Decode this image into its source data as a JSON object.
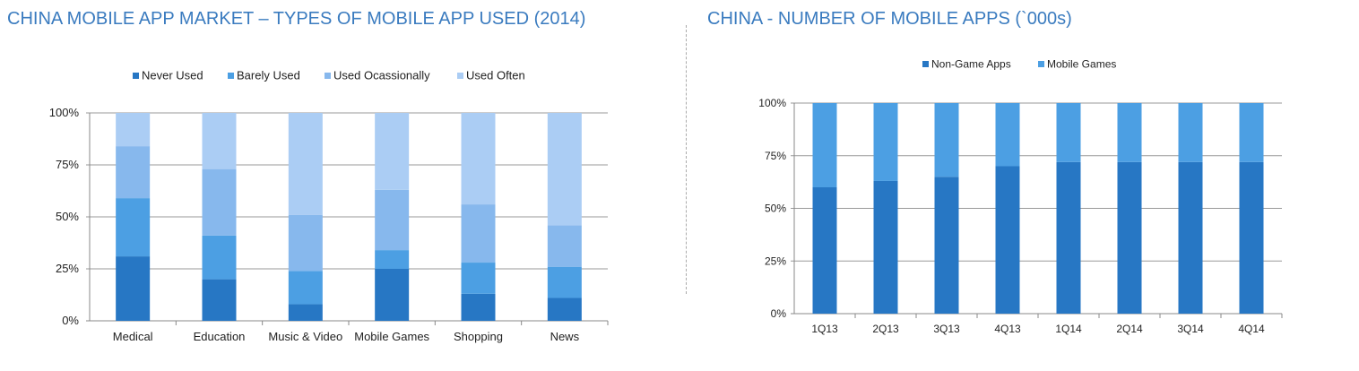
{
  "colors": {
    "title": "#3a7bbf",
    "never_used": "#2777c4",
    "barely_used": "#4c9fe3",
    "used_occasionally": "#87b8ed",
    "used_often": "#abcdf4",
    "non_game_apps": "#2777c4",
    "mobile_games": "#4c9fe3",
    "axis": "#888888",
    "grid": "#999999"
  },
  "chart_data": [
    {
      "type": "bar",
      "stacked": true,
      "title": "CHINA MOBILE APP MARKET – TYPES OF MOBILE APP USED (2014)",
      "xlabel": "",
      "ylabel": "",
      "ylim": [
        0,
        100
      ],
      "y_ticks": [
        "0%",
        "25%",
        "50%",
        "75%",
        "100%"
      ],
      "grid": true,
      "legend_position": "top",
      "categories": [
        "Medical",
        "Education",
        "Music & Video",
        "Mobile Games",
        "Shopping",
        "News"
      ],
      "series": [
        {
          "name": "Never Used",
          "values": [
            31,
            20,
            8,
            25,
            13,
            11
          ]
        },
        {
          "name": "Barely Used",
          "values": [
            28,
            21,
            16,
            9,
            15,
            15
          ]
        },
        {
          "name": "Used Ocassionally",
          "values": [
            25,
            32,
            27,
            29,
            28,
            20
          ]
        },
        {
          "name": "Used Often",
          "values": [
            16,
            27,
            49,
            37,
            44,
            54
          ]
        }
      ]
    },
    {
      "type": "bar",
      "stacked": true,
      "title": "CHINA - NUMBER OF MOBILE APPS (`000s)",
      "xlabel": "",
      "ylabel": "",
      "ylim": [
        0,
        100
      ],
      "y_ticks": [
        "0%",
        "25%",
        "50%",
        "75%",
        "100%"
      ],
      "grid": true,
      "legend_position": "top",
      "categories": [
        "1Q13",
        "2Q13",
        "3Q13",
        "4Q13",
        "1Q14",
        "2Q14",
        "3Q14",
        "4Q14"
      ],
      "series": [
        {
          "name": "Non-Game Apps",
          "values": [
            60,
            63,
            65,
            70,
            72,
            72,
            72,
            72
          ]
        },
        {
          "name": "Mobile Games",
          "values": [
            40,
            37,
            35,
            30,
            28,
            28,
            28,
            28
          ]
        }
      ]
    }
  ]
}
